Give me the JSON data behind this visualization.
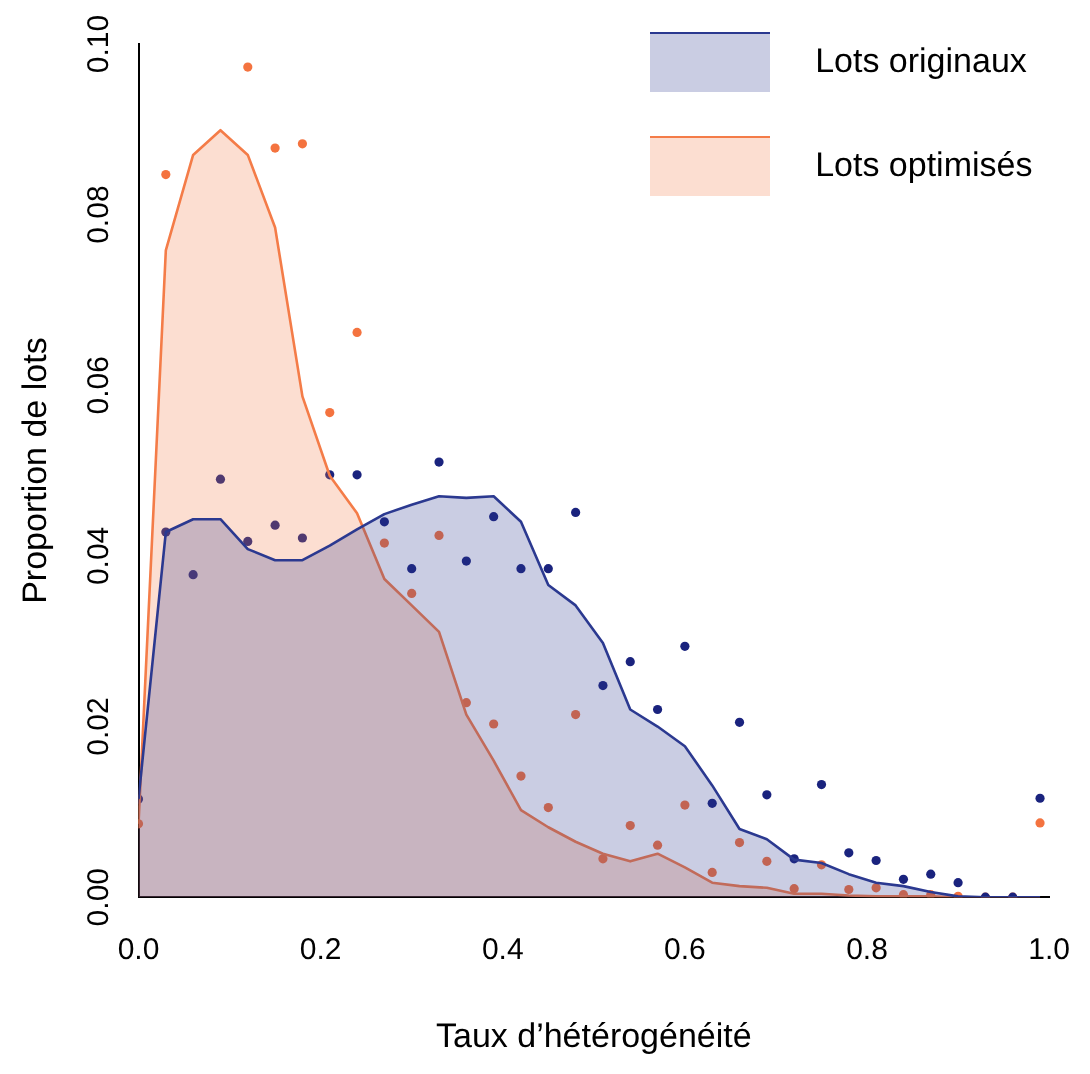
{
  "chart_data": {
    "type": "area",
    "xlabel": "Taux d’hétérogénéité",
    "ylabel": "Proportion de lots",
    "x": [
      0,
      0.03,
      0.06,
      0.09,
      0.12,
      0.15,
      0.18,
      0.21,
      0.24,
      0.27,
      0.3,
      0.33,
      0.36,
      0.39,
      0.42,
      0.45,
      0.48,
      0.51,
      0.54,
      0.57,
      0.6,
      0.63,
      0.66,
      0.69,
      0.72,
      0.75,
      0.78,
      0.81,
      0.84,
      0.87,
      0.9,
      0.93,
      0.96,
      0.99
    ],
    "series": [
      {
        "name": "Lots originaux",
        "color": "#2b3990",
        "values": [
          0.0115,
          0.0428,
          0.0443,
          0.0443,
          0.0408,
          0.0395,
          0.0395,
          0.0412,
          0.0431,
          0.0449,
          0.046,
          0.047,
          0.0468,
          0.047,
          0.044,
          0.0366,
          0.0342,
          0.0298,
          0.022,
          0.02,
          0.0177,
          0.0131,
          0.008,
          0.0068,
          0.0044,
          0.004,
          0.0027,
          0.0017,
          0.0013,
          0.0006,
          0.0001,
          0,
          0,
          0
        ]
      },
      {
        "name": "Lots optimisés",
        "color": "#f47c48",
        "values": [
          0.0086,
          0.0758,
          0.087,
          0.0899,
          0.087,
          0.0785,
          0.0587,
          0.0494,
          0.045,
          0.0373,
          0.0342,
          0.0311,
          0.0214,
          0.016,
          0.0102,
          0.0082,
          0.0065,
          0.0051,
          0.0042,
          0.0051,
          0.0035,
          0.0017,
          0.0013,
          0.0011,
          0.0004,
          0.0004,
          0.0002,
          0.0001,
          0.0001,
          0.0001,
          0,
          0,
          0,
          0
        ]
      },
      {
        "type": "scatter",
        "marker": "circle",
        "color": "#1a237e",
        "values": [
          0.0115,
          0.0428,
          0.0378,
          0.049,
          0.0417,
          0.0436,
          0.0421,
          0.0495,
          0.0495,
          0.044,
          0.0385,
          0.051,
          0.0394,
          0.0446,
          0.0385,
          0.0385,
          0.0451,
          0.0248,
          0.0276,
          0.022,
          0.0294,
          0.011,
          0.0205,
          0.012,
          0.0045,
          0.0132,
          0.0052,
          0.0043,
          0.0021,
          0.0027,
          0.0017,
          0,
          0,
          0.0116
        ]
      },
      {
        "type": "scatter",
        "marker": "circle",
        "color": "#f4733f",
        "values": [
          0.0086,
          0.0847,
          null,
          null,
          0.0973,
          0.0878,
          0.0883,
          0.0568,
          0.0662,
          0.0415,
          0.0356,
          0.0424,
          0.0228,
          0.0203,
          0.0142,
          0.0105,
          0.0214,
          0.0045,
          0.0084,
          0.0061,
          0.0108,
          0.0029,
          0.0064,
          0.0042,
          0.001,
          0.0038,
          0.0009,
          0.0011,
          0.0003,
          0.0003,
          0.0001,
          0,
          0,
          0.0087
        ]
      }
    ],
    "xlim": [
      0,
      1
    ],
    "xticks": [
      {
        "value": 0,
        "label": "0.0"
      },
      {
        "value": 0.2,
        "label": "0.2"
      },
      {
        "value": 0.4,
        "label": "0.4"
      },
      {
        "value": 0.6,
        "label": "0.6"
      },
      {
        "value": 0.8,
        "label": "0.8"
      },
      {
        "value": 1,
        "label": "1.0"
      }
    ],
    "ylim": [
      0,
      0.1
    ],
    "yticks": [
      {
        "value": 0,
        "label": "0.00"
      },
      {
        "value": 0.02,
        "label": "0.02"
      },
      {
        "value": 0.04,
        "label": "0.04"
      },
      {
        "value": 0.06,
        "label": "0.06"
      },
      {
        "value": 0.08,
        "label": "0.08"
      },
      {
        "value": 0.1,
        "label": "0.10"
      }
    ],
    "grid": false,
    "legend": "top right"
  }
}
